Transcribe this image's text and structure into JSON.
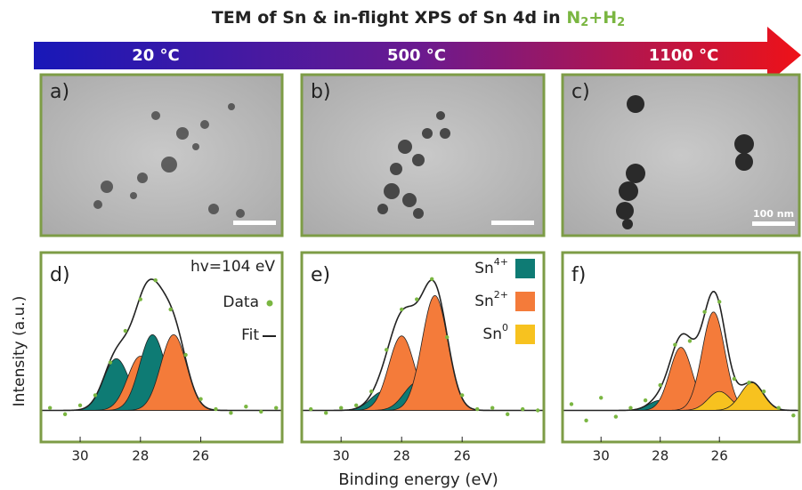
{
  "title": "TEM of Sn & in-flight XPS of Sn 4d in ",
  "title_gas": [
    "N",
    "2",
    "+H",
    "2"
  ],
  "temperatures": [
    "20 °C",
    "500 °C",
    "1100 °C"
  ],
  "tem_panels": [
    {
      "label": "a)"
    },
    {
      "label": "b)"
    },
    {
      "label": "c)",
      "scale_bar": "100 nm"
    }
  ],
  "x_label": "Binding energy (eV)",
  "y_label": "Intensity (a.u.)",
  "chart_data": [
    {
      "type": "xps",
      "panel_label": "d)",
      "annotation": "hv=104 eV",
      "xlim": [
        31.3,
        23.3
      ],
      "ylim": [
        -0.25,
        1.25
      ],
      "xticks": [
        30,
        28,
        26
      ],
      "fwhm": 1.0,
      "x": [
        31,
        30.5,
        30,
        29.5,
        29,
        28.5,
        28,
        27.5,
        27,
        26.5,
        26,
        25.5,
        25,
        24.5,
        24,
        23.5
      ],
      "series": [
        {
          "name": "Data",
          "color": "#7ab641",
          "values": [
            0.02,
            -0.03,
            0.04,
            0.12,
            0.38,
            0.63,
            0.88,
            1.03,
            0.8,
            0.44,
            0.09,
            0.01,
            -0.02,
            0.03,
            -0.01,
            0.02
          ]
        }
      ],
      "fit": {
        "name": "Fit",
        "color": "#222222"
      },
      "peaks": [
        {
          "center": 28.8,
          "height": 0.41,
          "color": "#0e7b74"
        },
        {
          "center": 28.0,
          "height": 0.43,
          "color": "#f47b3a"
        },
        {
          "center": 27.6,
          "height": 0.6,
          "color": "#0e7b74"
        },
        {
          "center": 26.9,
          "height": 0.6,
          "color": "#f47b3a"
        }
      ]
    },
    {
      "type": "xps",
      "panel_label": "e)",
      "xlim": [
        31.3,
        23.3
      ],
      "ylim": [
        -0.25,
        1.25
      ],
      "xticks": [
        30,
        28,
        26
      ],
      "fwhm": 1.0,
      "x": [
        31,
        30.5,
        30,
        29.5,
        29,
        28.5,
        28,
        27.5,
        27,
        26.5,
        26,
        25.5,
        25,
        24.5,
        24,
        23.5
      ],
      "series": [
        {
          "color": "#7ab641",
          "values": [
            0.01,
            -0.02,
            0.02,
            0.04,
            0.15,
            0.48,
            0.8,
            0.88,
            1.04,
            0.58,
            0.12,
            0.01,
            0.02,
            -0.03,
            0.01,
            0.0
          ]
        }
      ],
      "fit": {
        "color": "#222222"
      },
      "species": [
        {
          "name": "Sn",
          "charge": "4+",
          "color": "#0e7b74"
        },
        {
          "name": "Sn",
          "charge": "2+",
          "color": "#f47b3a"
        },
        {
          "name": "Sn",
          "charge": "0",
          "color": "#f7c21f"
        }
      ],
      "peaks": [
        {
          "center": 28.6,
          "height": 0.15,
          "color": "#0e7b74"
        },
        {
          "center": 28.0,
          "height": 0.59,
          "color": "#f47b3a"
        },
        {
          "center": 27.5,
          "height": 0.22,
          "color": "#0e7b74"
        },
        {
          "center": 26.9,
          "height": 0.91,
          "color": "#f47b3a"
        }
      ]
    },
    {
      "type": "xps",
      "panel_label": "f)",
      "xlim": [
        31.3,
        23.3
      ],
      "ylim": [
        -0.25,
        1.25
      ],
      "xticks": [
        30,
        28,
        26
      ],
      "fwhm": 0.9,
      "x": [
        31,
        30.5,
        30,
        29.5,
        29,
        28.5,
        28,
        27.5,
        27,
        26.5,
        26,
        25.5,
        25,
        24.5,
        24,
        23.5
      ],
      "series": [
        {
          "color": "#7ab641",
          "values": [
            0.05,
            -0.08,
            0.1,
            -0.05,
            0.02,
            0.08,
            0.2,
            0.52,
            0.55,
            0.78,
            0.86,
            0.25,
            0.22,
            0.15,
            0.02,
            -0.04
          ]
        }
      ],
      "fit": {
        "color": "#222222"
      },
      "peaks": [
        {
          "center": 28.0,
          "height": 0.08,
          "color": "#0e7b74"
        },
        {
          "center": 26.9,
          "height": 0.12,
          "color": "#0e7b74"
        },
        {
          "center": 27.3,
          "height": 0.5,
          "color": "#f47b3a"
        },
        {
          "center": 26.2,
          "height": 0.78,
          "color": "#f47b3a"
        },
        {
          "center": 26.0,
          "height": 0.15,
          "color": "#f7c21f"
        },
        {
          "center": 24.9,
          "height": 0.22,
          "color": "#f7c21f"
        }
      ]
    }
  ]
}
